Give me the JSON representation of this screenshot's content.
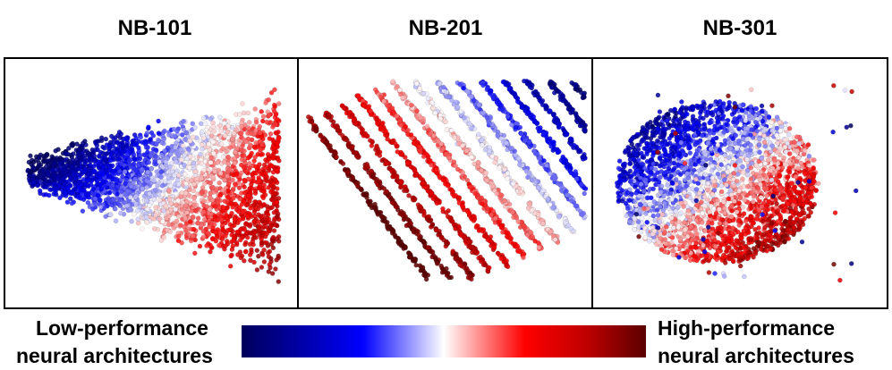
{
  "chart_data": [
    {
      "type": "scatter",
      "title": "NB-101",
      "xlabel": "",
      "ylabel": "",
      "grid": false,
      "description_of_values": "2D embedding, point colour = performance"
    },
    {
      "type": "scatter",
      "title": "NB-201",
      "xlabel": "",
      "ylabel": "",
      "grid": false
    },
    {
      "type": "scatter",
      "title": "NB-301",
      "xlabel": "",
      "ylabel": "",
      "grid": false
    }
  ],
  "legend": {
    "low_line1": "Low-performance",
    "low_line2": "neural architectures",
    "high_line1": "High-performance",
    "high_line2": "neural architectures",
    "colormap": [
      "#00005c",
      "#1a1ad6",
      "#0000ff",
      "#ffffff",
      "#ff0000",
      "#cc0000",
      "#660000"
    ]
  }
}
